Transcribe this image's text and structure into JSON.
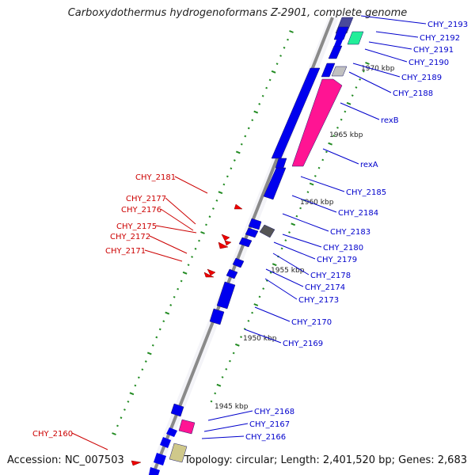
{
  "title": "Carboxydothermus hydrogenoformans Z-2901, complete genome",
  "accession_label": "Accession: NC_007503",
  "topology_label": "Topology: circular; Length: 2,401,520 bp; Genes: 2,683",
  "colors": {
    "backbone": "#8a8a8a",
    "forward_gene": "#0000ee",
    "reverse_gene": "#ee0000",
    "rexB": "#ff1493",
    "CHY_2167": "#ff1493",
    "CHY_2191": "#22ee99",
    "CHY_2183": "#555555",
    "CHY_2189": "#c0c0c0",
    "CHY_2166": "#cfc88a",
    "CHY_2193": "#4a4a9a",
    "tick_major": "#228b22",
    "tick_minor": "#228b22",
    "label_forward": "#0000cc",
    "label_reverse": "#cc0000"
  },
  "scale_labels": [
    "1970 kbp",
    "1965 kbp",
    "1960 kbp",
    "1955 kbp",
    "1950 kbp",
    "1945 kbp"
  ],
  "forward_genes": [
    "CHY_2193",
    "CHY_2192",
    "CHY_2191",
    "CHY_2190",
    "CHY_2189",
    "CHY_2188",
    "rexB",
    "rexA",
    "CHY_2185",
    "CHY_2184",
    "CHY_2183",
    "CHY_2180",
    "CHY_2179",
    "CHY_2178",
    "CHY_2174",
    "CHY_2173",
    "CHY_2170",
    "CHY_2169",
    "CHY_2168",
    "CHY_2167",
    "CHY_2166"
  ],
  "reverse_genes": [
    "CHY_2181",
    "CHY_2177",
    "CHY_2176",
    "CHY_2175",
    "CHY_2172",
    "CHY_2171",
    "CHY_2160"
  ]
}
